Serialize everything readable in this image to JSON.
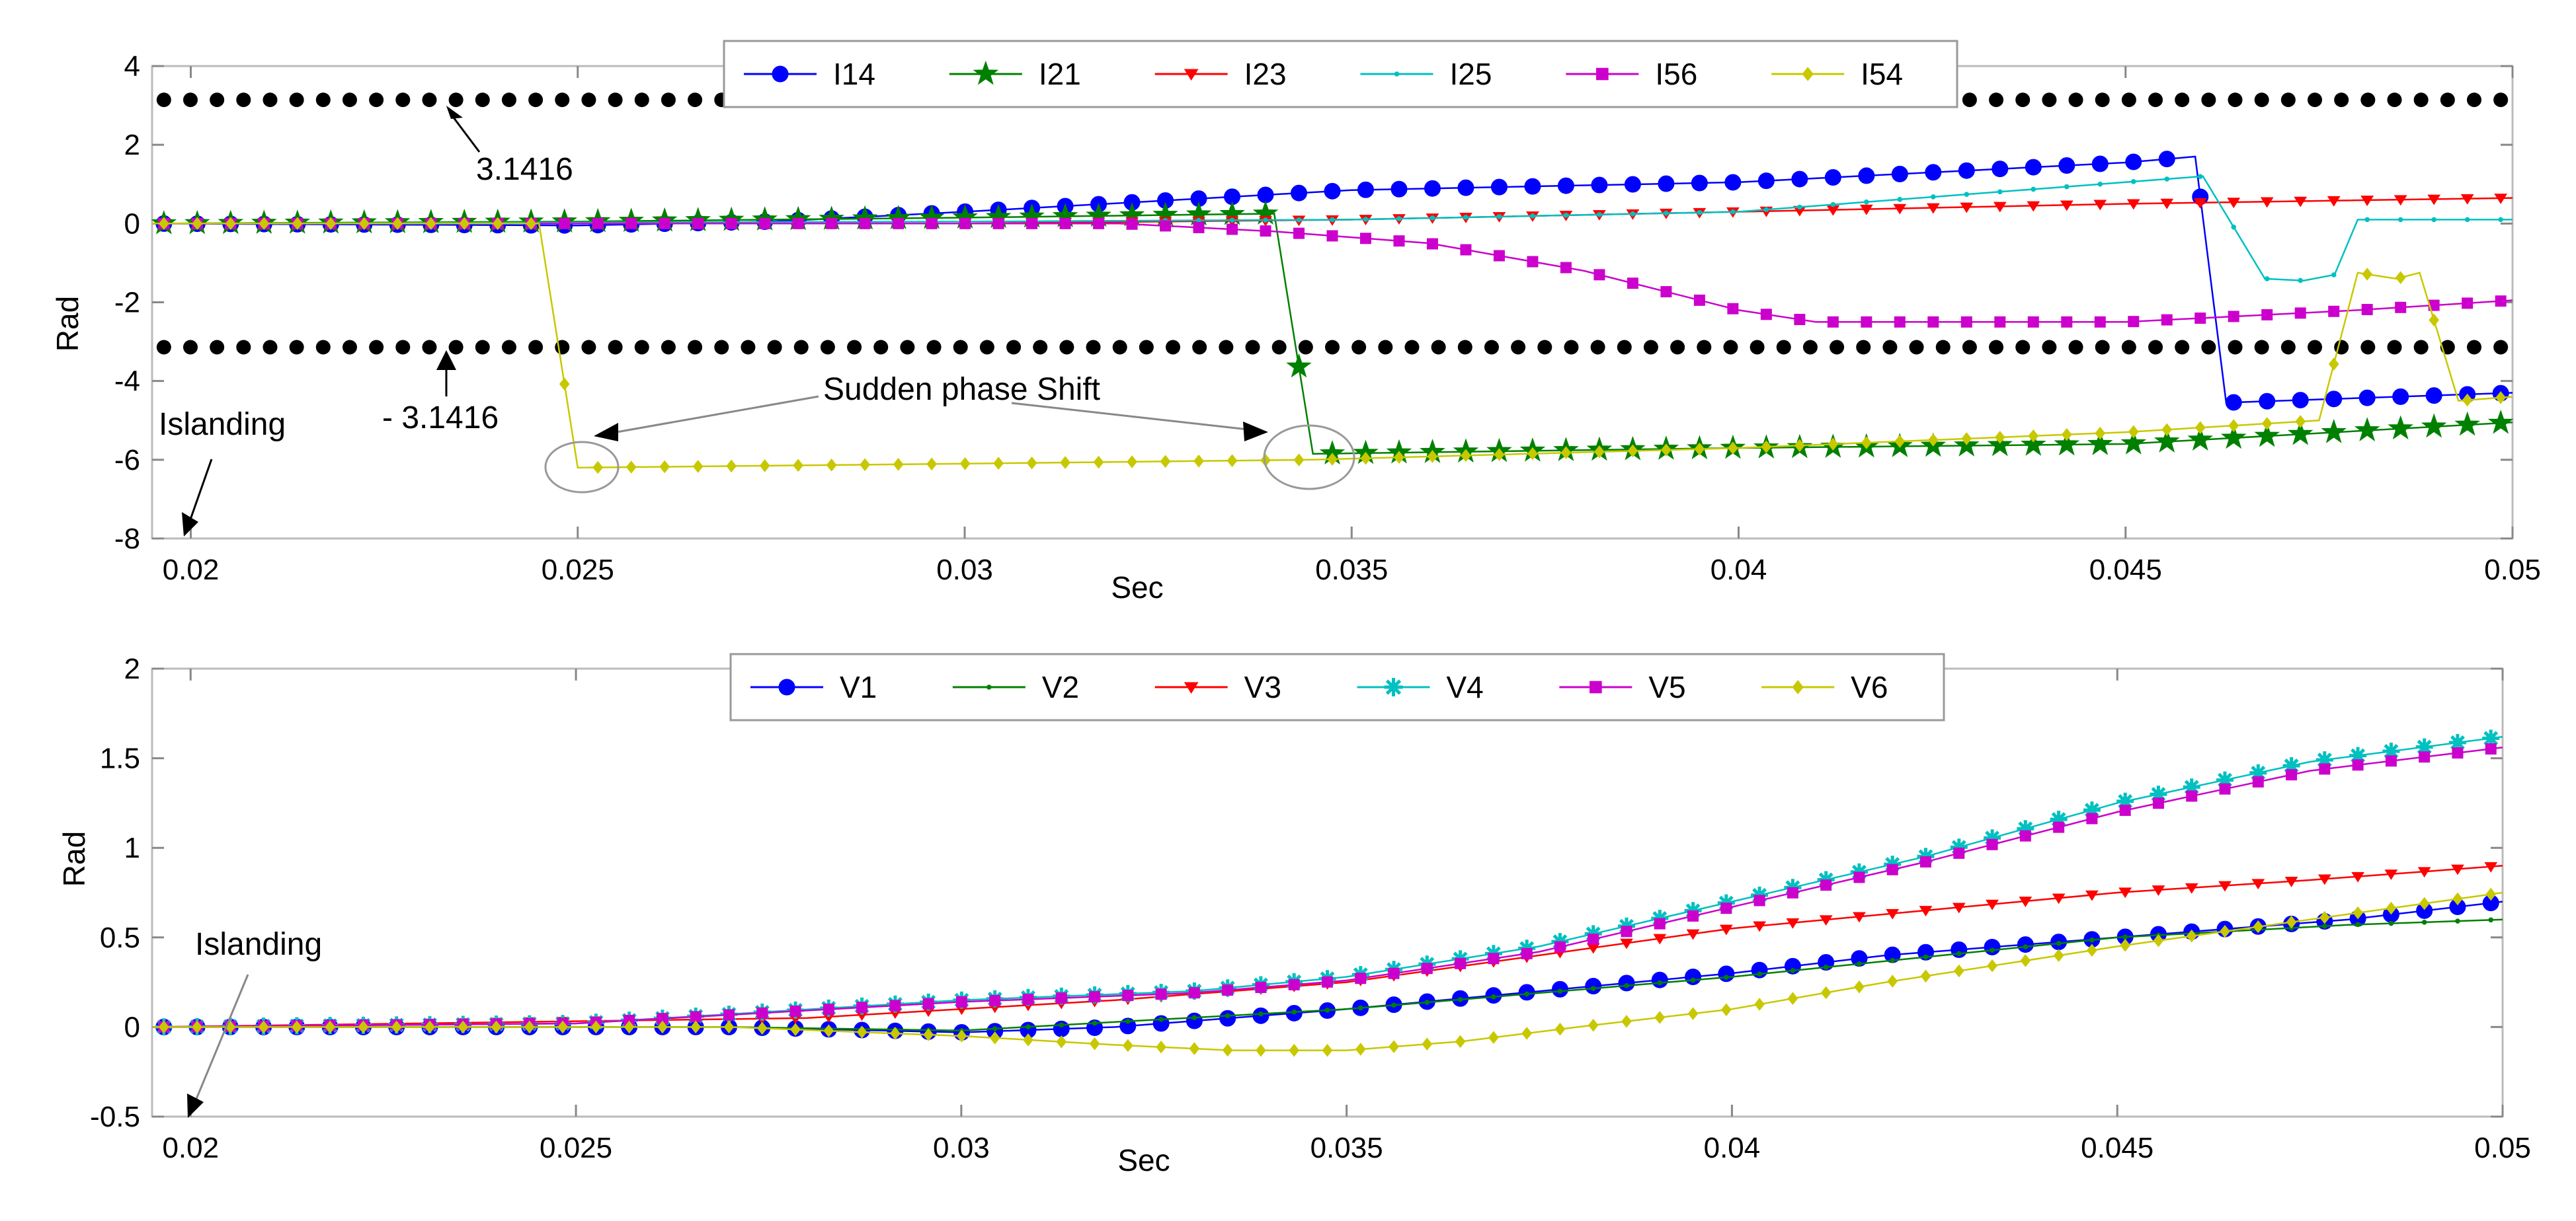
{
  "chart_data": [
    {
      "type": "line",
      "xlabel": "Sec",
      "ylabel": "Rad",
      "xlim": [
        0.0195,
        0.05
      ],
      "ylim": [
        -8,
        4
      ],
      "xticks": [
        "0.02",
        "0.025",
        "0.03",
        "0.035",
        "0.04",
        "0.045",
        "0.05"
      ],
      "xtick_values": [
        0.02,
        0.025,
        0.03,
        0.035,
        0.04,
        0.045,
        0.05
      ],
      "yticks": [
        "4",
        "2",
        "0",
        "-2",
        "-4",
        "-6",
        "-8"
      ],
      "ytick_values": [
        4,
        2,
        0,
        -2,
        -4,
        -6,
        -8
      ],
      "legend_position": "top-center",
      "reference_lines": [
        {
          "value": 3.1416,
          "label": "3.1416"
        },
        {
          "value": -3.1416,
          "label": "- 3.1416"
        }
      ],
      "annotations": [
        "Islanding",
        "Sudden phase Shift"
      ],
      "series": [
        {
          "name": "I14",
          "color": "#0000ff",
          "marker": "circle",
          "points": [
            [
              0.0195,
              0
            ],
            [
              0.025,
              -0.05
            ],
            [
              0.0275,
              0.05
            ],
            [
              0.03,
              0.3
            ],
            [
              0.035,
              0.85
            ],
            [
              0.04,
              1.05
            ],
            [
              0.045,
              1.55
            ],
            [
              0.0459,
              1.7
            ],
            [
              0.0463,
              -4.55
            ],
            [
              0.05,
              -4.3
            ]
          ]
        },
        {
          "name": "I21",
          "color": "#008000",
          "marker": "star",
          "points": [
            [
              0.0195,
              0
            ],
            [
              0.025,
              0.05
            ],
            [
              0.03,
              0.15
            ],
            [
              0.034,
              0.25
            ],
            [
              0.0345,
              -5.85
            ],
            [
              0.04,
              -5.7
            ],
            [
              0.045,
              -5.6
            ],
            [
              0.05,
              -5.05
            ]
          ]
        },
        {
          "name": "I23",
          "color": "#ff0000",
          "marker": "triangle",
          "points": [
            [
              0.0195,
              0
            ],
            [
              0.03,
              0
            ],
            [
              0.035,
              0.1
            ],
            [
              0.04,
              0.3
            ],
            [
              0.045,
              0.5
            ],
            [
              0.05,
              0.65
            ]
          ]
        },
        {
          "name": "I25",
          "color": "#00c0c0",
          "marker": "dot",
          "points": [
            [
              0.0195,
              0
            ],
            [
              0.03,
              0.05
            ],
            [
              0.035,
              0.1
            ],
            [
              0.04,
              0.3
            ],
            [
              0.044,
              0.9
            ],
            [
              0.046,
              1.2
            ],
            [
              0.0468,
              -1.4
            ],
            [
              0.0473,
              -1.45
            ],
            [
              0.0477,
              -1.3
            ],
            [
              0.048,
              0.1
            ],
            [
              0.05,
              0.1
            ]
          ]
        },
        {
          "name": "I56",
          "color": "#cc00cc",
          "marker": "square",
          "points": [
            [
              0.0195,
              0
            ],
            [
              0.032,
              0
            ],
            [
              0.034,
              -0.2
            ],
            [
              0.036,
              -0.5
            ],
            [
              0.038,
              -1.2
            ],
            [
              0.04,
              -2.2
            ],
            [
              0.041,
              -2.5
            ],
            [
              0.045,
              -2.5
            ],
            [
              0.048,
              -2.2
            ],
            [
              0.05,
              -1.95
            ]
          ]
        },
        {
          "name": "I54",
          "color": "#c8c800",
          "marker": "diamond",
          "points": [
            [
              0.0195,
              0
            ],
            [
              0.0245,
              0
            ],
            [
              0.025,
              -6.2
            ],
            [
              0.03,
              -6.1
            ],
            [
              0.0345,
              -6.0
            ],
            [
              0.04,
              -5.7
            ],
            [
              0.045,
              -5.3
            ],
            [
              0.0475,
              -5.0
            ],
            [
              0.048,
              -1.25
            ],
            [
              0.0485,
              -1.4
            ],
            [
              0.0488,
              -1.25
            ],
            [
              0.0493,
              -4.5
            ],
            [
              0.05,
              -4.4
            ]
          ]
        }
      ]
    },
    {
      "type": "line",
      "xlabel": "Sec",
      "ylabel": "Rad",
      "xlim": [
        0.0195,
        0.05
      ],
      "ylim": [
        -0.5,
        2
      ],
      "xticks": [
        "0.02",
        "0.025",
        "0.03",
        "0.035",
        "0.04",
        "0.045",
        "0.05"
      ],
      "xtick_values": [
        0.02,
        0.025,
        0.03,
        0.035,
        0.04,
        0.045,
        0.05
      ],
      "yticks": [
        "2",
        "1.5",
        "1",
        "0.5",
        "0",
        "-0.5"
      ],
      "ytick_values": [
        2,
        1.5,
        1,
        0.5,
        0,
        -0.5
      ],
      "legend_position": "top-center",
      "annotations": [
        "Islanding"
      ],
      "series": [
        {
          "name": "V1",
          "color": "#0000ff",
          "marker": "circle",
          "points": [
            [
              0.0195,
              0
            ],
            [
              0.027,
              0
            ],
            [
              0.03,
              -0.03
            ],
            [
              0.032,
              0
            ],
            [
              0.035,
              0.1
            ],
            [
              0.0375,
              0.2
            ],
            [
              0.04,
              0.3
            ],
            [
              0.042,
              0.4
            ],
            [
              0.045,
              0.5
            ],
            [
              0.048,
              0.6
            ],
            [
              0.05,
              0.7
            ]
          ]
        },
        {
          "name": "V2",
          "color": "#008000",
          "marker": "dot",
          "points": [
            [
              0.0195,
              0
            ],
            [
              0.027,
              0
            ],
            [
              0.03,
              -0.02
            ],
            [
              0.035,
              0.1
            ],
            [
              0.04,
              0.28
            ],
            [
              0.045,
              0.5
            ],
            [
              0.048,
              0.57
            ],
            [
              0.05,
              0.6
            ]
          ]
        },
        {
          "name": "V3",
          "color": "#ff0000",
          "marker": "triangle",
          "points": [
            [
              0.0195,
              0
            ],
            [
              0.028,
              0.05
            ],
            [
              0.032,
              0.15
            ],
            [
              0.035,
              0.25
            ],
            [
              0.0375,
              0.4
            ],
            [
              0.04,
              0.55
            ],
            [
              0.0425,
              0.65
            ],
            [
              0.045,
              0.75
            ],
            [
              0.0475,
              0.82
            ],
            [
              0.05,
              0.9
            ]
          ]
        },
        {
          "name": "V4",
          "color": "#00c0c0",
          "marker": "asterisk",
          "points": [
            [
              0.0195,
              0
            ],
            [
              0.025,
              0.02
            ],
            [
              0.03,
              0.15
            ],
            [
              0.033,
              0.2
            ],
            [
              0.035,
              0.28
            ],
            [
              0.0375,
              0.45
            ],
            [
              0.04,
              0.7
            ],
            [
              0.0425,
              0.95
            ],
            [
              0.045,
              1.25
            ],
            [
              0.0475,
              1.48
            ],
            [
              0.05,
              1.62
            ]
          ]
        },
        {
          "name": "V5",
          "color": "#cc00cc",
          "marker": "square",
          "points": [
            [
              0.0195,
              0
            ],
            [
              0.025,
              0.02
            ],
            [
              0.03,
              0.14
            ],
            [
              0.033,
              0.19
            ],
            [
              0.035,
              0.26
            ],
            [
              0.0375,
              0.42
            ],
            [
              0.04,
              0.67
            ],
            [
              0.0425,
              0.92
            ],
            [
              0.045,
              1.2
            ],
            [
              0.0475,
              1.43
            ],
            [
              0.05,
              1.56
            ]
          ]
        },
        {
          "name": "V6",
          "color": "#c8c800",
          "marker": "diamond",
          "points": [
            [
              0.0195,
              0
            ],
            [
              0.027,
              0
            ],
            [
              0.03,
              -0.05
            ],
            [
              0.032,
              -0.1
            ],
            [
              0.0335,
              -0.13
            ],
            [
              0.035,
              -0.13
            ],
            [
              0.0365,
              -0.08
            ],
            [
              0.038,
              0
            ],
            [
              0.04,
              0.1
            ],
            [
              0.042,
              0.25
            ],
            [
              0.045,
              0.45
            ],
            [
              0.0475,
              0.6
            ],
            [
              0.05,
              0.75
            ]
          ]
        }
      ]
    }
  ]
}
